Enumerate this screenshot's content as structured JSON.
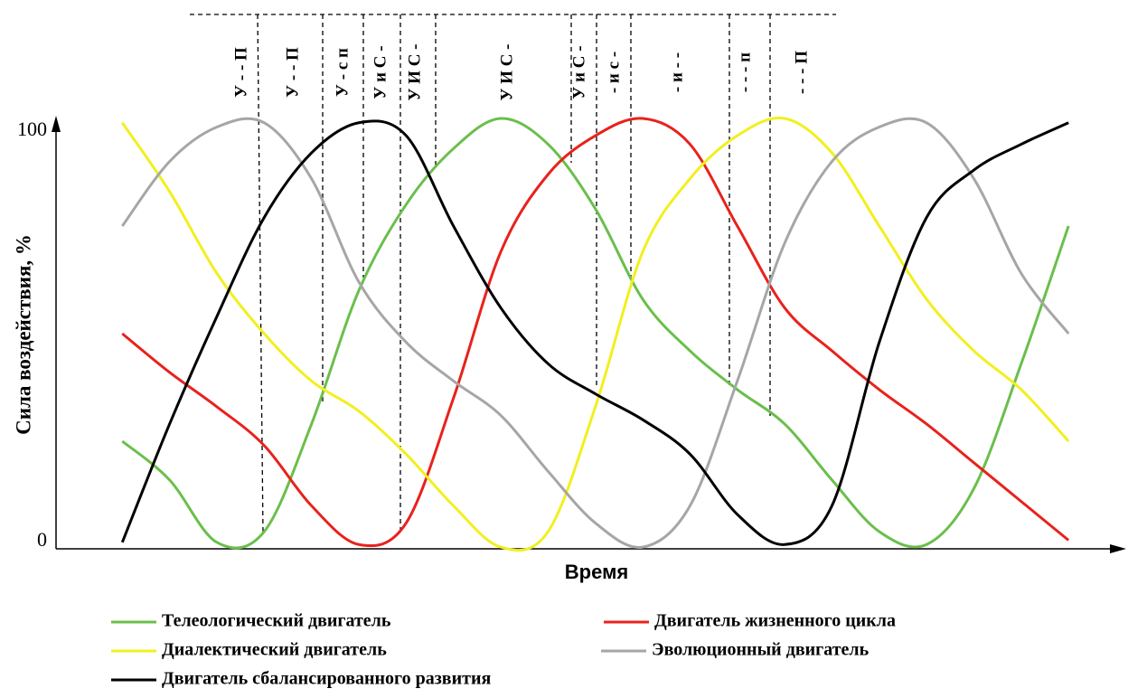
{
  "chart_data": {
    "type": "line",
    "x_label": "Время",
    "y_label": "Сила воздействия, %",
    "x": [
      0,
      5,
      10,
      15,
      20,
      25,
      30,
      35,
      40,
      45,
      50,
      55,
      60,
      65,
      70,
      75,
      80,
      85,
      90,
      95,
      100
    ],
    "xlim": [
      -7,
      106
    ],
    "ylim": [
      0,
      100
    ],
    "yticks": [
      0,
      100
    ],
    "annotations": [
      "У - - П",
      "У - - П",
      "У - с п",
      "У и С -",
      "У И С -",
      "У И С -",
      "У и С -",
      "- и с -",
      "- и - -",
      "- - - п",
      "- - - П"
    ],
    "series": [
      {
        "name": "Телеологический двигатель",
        "color": "#6abf4b",
        "values": [
          25,
          16,
          1.5,
          4,
          29,
          60,
          80,
          93,
          100,
          94,
          79,
          58,
          46,
          37,
          29,
          16,
          4,
          1,
          14,
          43,
          75
        ]
      },
      {
        "name": "Двигатель жизненного цикла",
        "color": "#e8221c",
        "values": [
          50,
          41,
          33,
          24,
          10,
          1,
          6,
          35,
          69,
          87,
          96,
          100,
          94,
          75,
          56,
          46,
          37,
          29,
          20,
          11,
          2
        ]
      },
      {
        "name": "Диалектический двигатель",
        "color": "#f2ef1f",
        "values": [
          99,
          83,
          64,
          50,
          39,
          32,
          22,
          10,
          0.4,
          4,
          33,
          69,
          86,
          96,
          100,
          92,
          75,
          58,
          46,
          37,
          25
        ]
      },
      {
        "name": "Эволюционный двигатель",
        "color": "#a6a6a6",
        "values": [
          75,
          90,
          98,
          99,
          86,
          62,
          48,
          39,
          31,
          18,
          6,
          0.4,
          10,
          39,
          71,
          90,
          98,
          99,
          86,
          64,
          50
        ]
      },
      {
        "name": "Двигатель сбалансированного развития",
        "color": "#000000",
        "values": [
          1.5,
          29,
          54,
          77,
          92,
          99,
          96,
          75,
          56,
          43,
          36,
          30,
          22,
          8,
          1,
          10,
          48,
          77,
          88,
          94,
          99
        ]
      }
    ]
  }
}
